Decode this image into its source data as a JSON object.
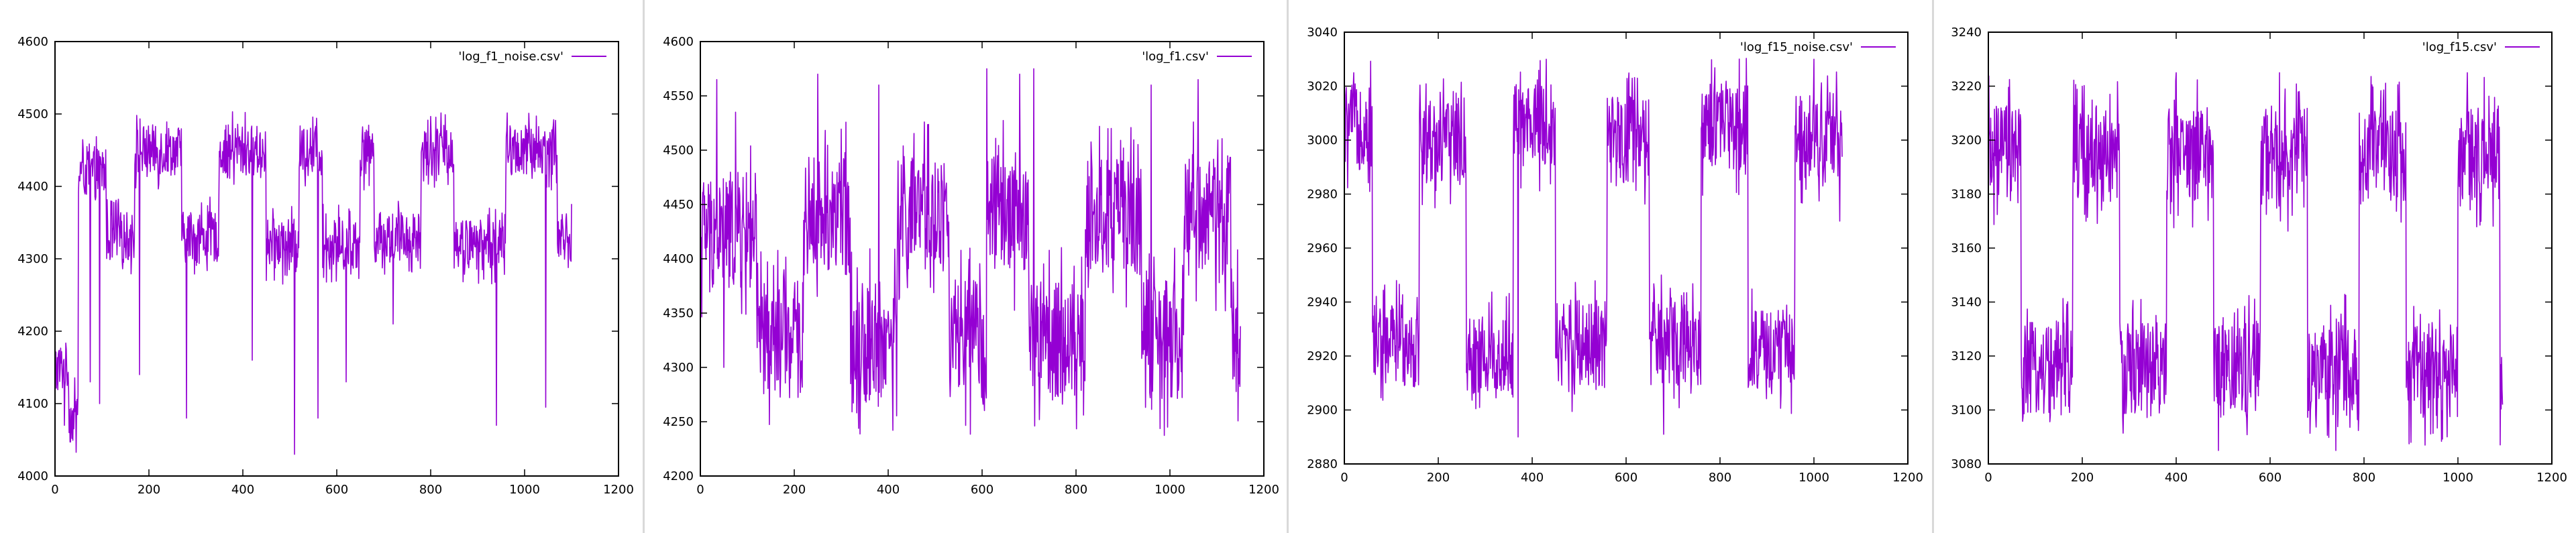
{
  "series_color": "#9400d3",
  "divider_color": "#d9d9d9",
  "chart_data": [
    {
      "type": "line",
      "title": "",
      "xlabel": "",
      "ylabel": "",
      "xlim": [
        0,
        1200
      ],
      "ylim": [
        4000,
        4600
      ],
      "xticks": [
        0,
        200,
        400,
        600,
        800,
        1000,
        1200
      ],
      "yticks": [
        4000,
        4100,
        4200,
        4300,
        4400,
        4500,
        4600
      ],
      "grid": false,
      "legend_position": "top-right",
      "series": [
        {
          "name": "'log_f1_noise.csv'",
          "x": [
            0,
            30,
            50,
            110,
            170,
            270,
            350,
            450,
            520,
            570,
            650,
            680,
            780,
            850,
            960,
            1070,
            1100
          ],
          "y": [
            4150,
            4080,
            4420,
            4330,
            4450,
            4330,
            4450,
            4320,
            4450,
            4320,
            4450,
            4330,
            4450,
            4320,
            4450,
            4330,
            4350
          ],
          "noise": 35,
          "spikes": [
            [
              20,
              4070
            ],
            [
              30,
              4060
            ],
            [
              75,
              4130
            ],
            [
              95,
              4100
            ],
            [
              180,
              4140
            ],
            [
              280,
              4080
            ],
            [
              420,
              4160
            ],
            [
              510,
              4030
            ],
            [
              560,
              4080
            ],
            [
              620,
              4130
            ],
            [
              720,
              4210
            ],
            [
              940,
              4070
            ],
            [
              1045,
              4095
            ]
          ],
          "points": 1100
        }
      ]
    },
    {
      "type": "line",
      "title": "",
      "xlabel": "",
      "ylabel": "",
      "xlim": [
        0,
        1200
      ],
      "ylim": [
        4200,
        4600
      ],
      "xticks": [
        0,
        200,
        400,
        600,
        800,
        1000,
        1200
      ],
      "yticks": [
        4200,
        4250,
        4300,
        4350,
        4400,
        4450,
        4500,
        4550,
        4600
      ],
      "grid": false,
      "legend_position": "top-right",
      "series": [
        {
          "name": "'log_f1.csv'",
          "x": [
            0,
            120,
            220,
            320,
            420,
            530,
            610,
            700,
            820,
            940,
            1030,
            1130,
            1150
          ],
          "y": [
            4425,
            4325,
            4440,
            4325,
            4440,
            4325,
            4440,
            4325,
            4440,
            4325,
            4440,
            4330,
            4330
          ],
          "noise": 55,
          "spikes": [
            [
              35,
              4565
            ],
            [
              50,
              4300
            ],
            [
              75,
              4535
            ],
            [
              250,
              4570
            ],
            [
              320,
              4285
            ],
            [
              380,
              4560
            ],
            [
              610,
              4575
            ],
            [
              680,
              4570
            ],
            [
              710,
              4575
            ],
            [
              750,
              4270
            ],
            [
              960,
              4560
            ],
            [
              995,
              4245
            ],
            [
              1060,
              4565
            ]
          ],
          "points": 1150
        }
      ]
    },
    {
      "type": "line",
      "title": "",
      "xlabel": "",
      "ylabel": "",
      "xlim": [
        0,
        1200
      ],
      "ylim": [
        2880,
        3040
      ],
      "xticks": [
        0,
        200,
        400,
        600,
        800,
        1000,
        1200
      ],
      "yticks": [
        2880,
        2900,
        2920,
        2940,
        2960,
        2980,
        3000,
        3020,
        3040
      ],
      "grid": false,
      "legend_position": "top-right",
      "series": [
        {
          "name": "'log_f15_noise.csv'",
          "x": [
            0,
            60,
            160,
            260,
            360,
            450,
            560,
            650,
            760,
            860,
            960,
            1050
          ],
          "y": [
            3005,
            2925,
            3000,
            2920,
            3005,
            2925,
            3000,
            2925,
            3005,
            2922,
            3002,
            3000
          ],
          "noise": 16,
          "spikes": [
            [
              20,
              3025
            ],
            [
              370,
              2890
            ],
            [
              430,
              3030
            ],
            [
              680,
              2891
            ],
            [
              1000,
              3030
            ],
            [
              1055,
              2970
            ]
          ],
          "points": 1060
        }
      ]
    },
    {
      "type": "line",
      "title": "",
      "xlabel": "",
      "ylabel": "",
      "xlim": [
        0,
        1200
      ],
      "ylim": [
        3080,
        3240
      ],
      "xticks": [
        0,
        200,
        400,
        600,
        800,
        1000,
        1200
      ],
      "yticks": [
        3080,
        3100,
        3120,
        3140,
        3160,
        3180,
        3200,
        3220,
        3240
      ],
      "grid": false,
      "legend_position": "top-right",
      "series": [
        {
          "name": "'log_f15.csv'",
          "x": [
            0,
            70,
            180,
            280,
            380,
            480,
            580,
            680,
            790,
            890,
            1000,
            1090
          ],
          "y": [
            3195,
            3115,
            3195,
            3115,
            3195,
            3115,
            3195,
            3115,
            3195,
            3115,
            3195,
            3110
          ],
          "noise": 18,
          "spikes": [
            [
              15,
              3200
            ],
            [
              200,
              3220
            ],
            [
              400,
              3225
            ],
            [
              490,
              3085
            ],
            [
              620,
              3225
            ],
            [
              740,
              3085
            ],
            [
              900,
              3088
            ],
            [
              1020,
              3225
            ],
            [
              1095,
              3102
            ]
          ],
          "points": 1095
        }
      ]
    }
  ]
}
